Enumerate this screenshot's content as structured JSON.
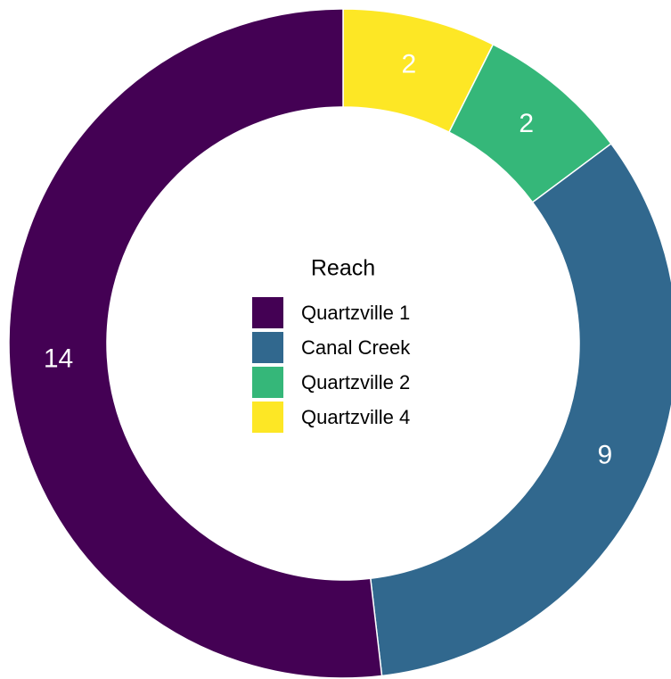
{
  "chart_data": {
    "type": "pie",
    "legend_title": "Reach",
    "categories": [
      "Quartzville 1",
      "Canal Creek",
      "Quartzville 2",
      "Quartzville 4"
    ],
    "values": [
      14,
      9,
      2,
      2
    ],
    "colors": [
      "#440154",
      "#31688E",
      "#35B779",
      "#FDE725"
    ]
  }
}
